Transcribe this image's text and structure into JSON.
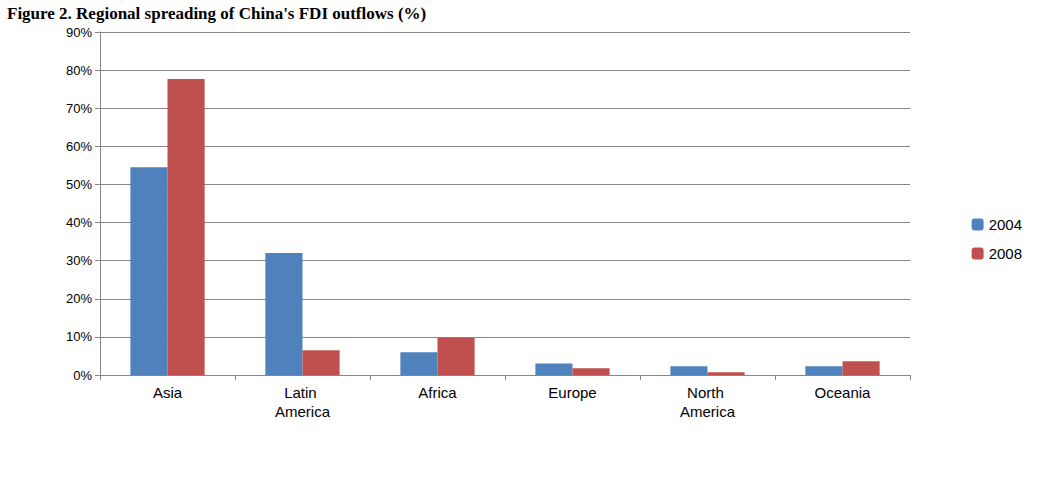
{
  "chart_data": {
    "type": "bar",
    "title": "Figure 2. Regional spreading of China's FDI outflows (%)",
    "categories": [
      "Asia",
      "Latin America",
      "Africa",
      "Europe",
      "North America",
      "Oceania"
    ],
    "series": [
      {
        "name": "2004",
        "color": "#4f81bd",
        "values": [
          54.5,
          32,
          6,
          3,
          2.3,
          2.3
        ]
      },
      {
        "name": "2008",
        "color": "#c0504d",
        "values": [
          77.7,
          6.5,
          9.8,
          1.8,
          0.7,
          3.6
        ]
      }
    ],
    "ylim": [
      0,
      90
    ],
    "yticks": [
      {
        "value": 0,
        "label": "0%"
      },
      {
        "value": 10,
        "label": "10%"
      },
      {
        "value": 20,
        "label": "20%"
      },
      {
        "value": 30,
        "label": "30%"
      },
      {
        "value": 40,
        "label": "40%"
      },
      {
        "value": 50,
        "label": "50%"
      },
      {
        "value": 60,
        "label": "60%"
      },
      {
        "value": 70,
        "label": "70%"
      },
      {
        "value": 80,
        "label": "80%"
      },
      {
        "value": 90,
        "label": "90%"
      }
    ],
    "grid": true,
    "legend": "right"
  }
}
